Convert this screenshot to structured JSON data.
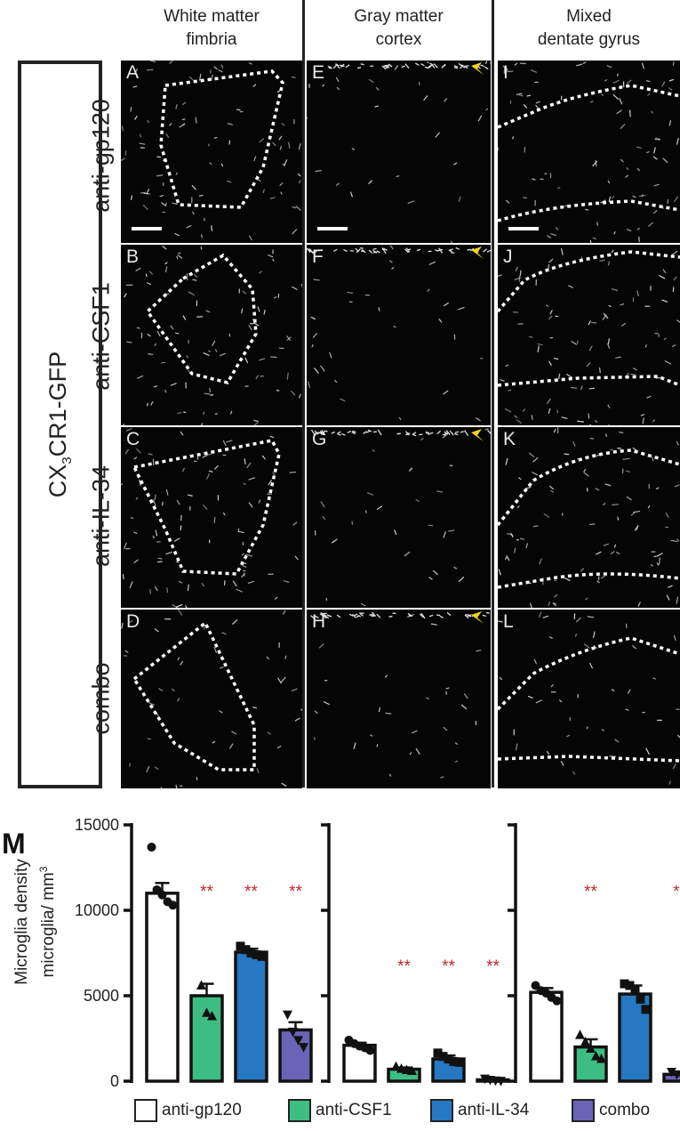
{
  "columns": [
    {
      "line1": "White matter",
      "line2": "fimbria"
    },
    {
      "line1": "Gray matter",
      "line2": "cortex"
    },
    {
      "line1": "Mixed",
      "line2": "dentate gyrus"
    }
  ],
  "side_label": {
    "main": "CX",
    "sub": "3",
    "rest": "CR1-GFP"
  },
  "rows": [
    "anti-gp120",
    "anti-CSF1",
    "anti-IL-34",
    "combo"
  ],
  "panel_letters": [
    [
      "A",
      "E",
      "I"
    ],
    [
      "B",
      "F",
      "J"
    ],
    [
      "C",
      "G",
      "K"
    ],
    [
      "D",
      "H",
      "L"
    ]
  ],
  "panel_m_letter": "M",
  "ylabel_line1": "Microglia density",
  "ylabel_line2": "microglia/ mm",
  "ylabel_sup": "3",
  "colors": {
    "anti-gp120": "#ffffff",
    "anti-CSF1": "#3dbd82",
    "anti-IL-34": "#2678c2",
    "combo": "#6a64b6",
    "significance": "#c0282d",
    "arrowhead": "#f5d21f"
  },
  "legend": [
    {
      "label": "anti-gp120",
      "color": "#ffffff"
    },
    {
      "label": "anti-CSF1",
      "color": "#3dbd82"
    },
    {
      "label": "anti-IL-34",
      "color": "#2678c2"
    },
    {
      "label": "combo",
      "color": "#6a64b6"
    }
  ],
  "chart_data": [
    {
      "type": "bar",
      "categories": [
        "anti-gp120",
        "anti-CSF1",
        "anti-IL-34",
        "combo"
      ],
      "values": [
        11000,
        5000,
        7550,
        3000
      ],
      "errors": [
        600,
        700,
        200,
        450
      ],
      "points": [
        [
          13700,
          11200,
          10900,
          10500,
          10300
        ],
        [
          5600,
          4000,
          3800
        ],
        [
          7900,
          7700,
          7500,
          7400,
          7300
        ],
        [
          3900,
          2900,
          2400,
          2000
        ]
      ],
      "markers": [
        "circle",
        "triangle-up",
        "square",
        "triangle-down"
      ],
      "significance": [
        "",
        "**",
        "**",
        "**"
      ],
      "ylim": [
        0,
        15000
      ],
      "yticks": [
        0,
        5000,
        10000,
        15000
      ],
      "ylabel": "Microglia density microglia/ mm3"
    },
    {
      "type": "bar",
      "categories": [
        "anti-gp120",
        "anti-CSF1",
        "anti-IL-34",
        "combo"
      ],
      "values": [
        2100,
        700,
        1300,
        80
      ],
      "errors": [
        150,
        100,
        200,
        40
      ],
      "points": [
        [
          2400,
          2200,
          2050,
          1950,
          1800
        ],
        [
          850,
          720,
          650,
          600
        ],
        [
          1650,
          1450,
          1300,
          1150,
          1100
        ],
        [
          150,
          80,
          40,
          20
        ]
      ],
      "markers": [
        "circle",
        "triangle-up",
        "square",
        "triangle-down"
      ],
      "significance": [
        "",
        "**",
        "**",
        "**"
      ],
      "ylim": [
        0,
        15000
      ],
      "yticks": [
        0,
        5000,
        10000,
        15000
      ]
    },
    {
      "type": "bar",
      "categories": [
        "anti-gp120",
        "anti-CSF1",
        "anti-IL-34",
        "combo"
      ],
      "values": [
        5200,
        2000,
        5100,
        400
      ],
      "errors": [
        250,
        450,
        500,
        100
      ],
      "points": [
        [
          5600,
          5300,
          5150,
          4900,
          4700
        ],
        [
          2700,
          2300,
          1900,
          1450,
          1300
        ],
        [
          5700,
          5600,
          5300,
          4800,
          4200
        ],
        [
          550,
          400,
          280,
          200
        ]
      ],
      "markers": [
        "circle",
        "triangle-up",
        "square",
        "triangle-down"
      ],
      "significance": [
        "",
        "**",
        "",
        "**"
      ],
      "ylim": [
        0,
        15000
      ],
      "yticks": [
        0,
        5000,
        10000,
        15000
      ]
    }
  ]
}
